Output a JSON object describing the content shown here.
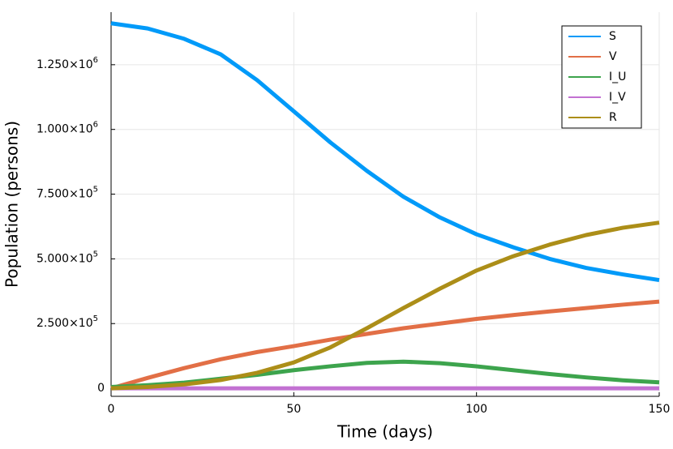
{
  "chart_data": {
    "type": "line",
    "xlabel": "Time (days)",
    "ylabel": "Population (persons)",
    "x": [
      0,
      10,
      20,
      30,
      40,
      50,
      60,
      70,
      80,
      90,
      100,
      110,
      120,
      130,
      140,
      150
    ],
    "series": [
      {
        "name": "S",
        "color": "#009af9",
        "values": [
          1410000,
          1390000,
          1350000,
          1290000,
          1190000,
          1070000,
          950000,
          840000,
          740000,
          660000,
          595000,
          545000,
          500000,
          465000,
          440000,
          418000
        ]
      },
      {
        "name": "V",
        "color": "#e26f46",
        "values": [
          0,
          40000,
          78000,
          112000,
          140000,
          163000,
          188000,
          210000,
          232000,
          250000,
          268000,
          283000,
          297000,
          310000,
          323000,
          335000
        ]
      },
      {
        "name": "I_U",
        "color": "#3da44d",
        "values": [
          5000,
          12000,
          22000,
          37000,
          52000,
          70000,
          85000,
          98000,
          103000,
          97000,
          85000,
          70000,
          55000,
          42000,
          31000,
          23000
        ]
      },
      {
        "name": "I_V",
        "color": "#c271d2",
        "values": [
          0,
          0,
          0,
          0,
          0,
          0,
          0,
          0,
          0,
          0,
          0,
          0,
          0,
          0,
          0,
          0
        ]
      },
      {
        "name": "R",
        "color": "#ac8e18",
        "values": [
          0,
          5000,
          15000,
          32000,
          60000,
          100000,
          158000,
          232000,
          310000,
          385000,
          455000,
          510000,
          555000,
          592000,
          620000,
          640000
        ]
      }
    ],
    "xlim": [
      0,
      150
    ],
    "xticks": [
      0,
      50,
      100,
      150
    ],
    "ylim": [
      -31000,
      1453000
    ],
    "yticks": [
      0,
      {
        "value": 250000,
        "label": "2.500×10",
        "exponent": "5"
      },
      {
        "value": 500000,
        "label": "5.000×10",
        "exponent": "5"
      },
      {
        "value": 750000,
        "label": "7.500×10",
        "exponent": "5"
      },
      {
        "value": 1000000,
        "label": "1.000×10",
        "exponent": "6"
      },
      {
        "value": 1250000,
        "label": "1.250×10",
        "exponent": "6"
      }
    ],
    "grid": true,
    "legend": "top-right"
  }
}
